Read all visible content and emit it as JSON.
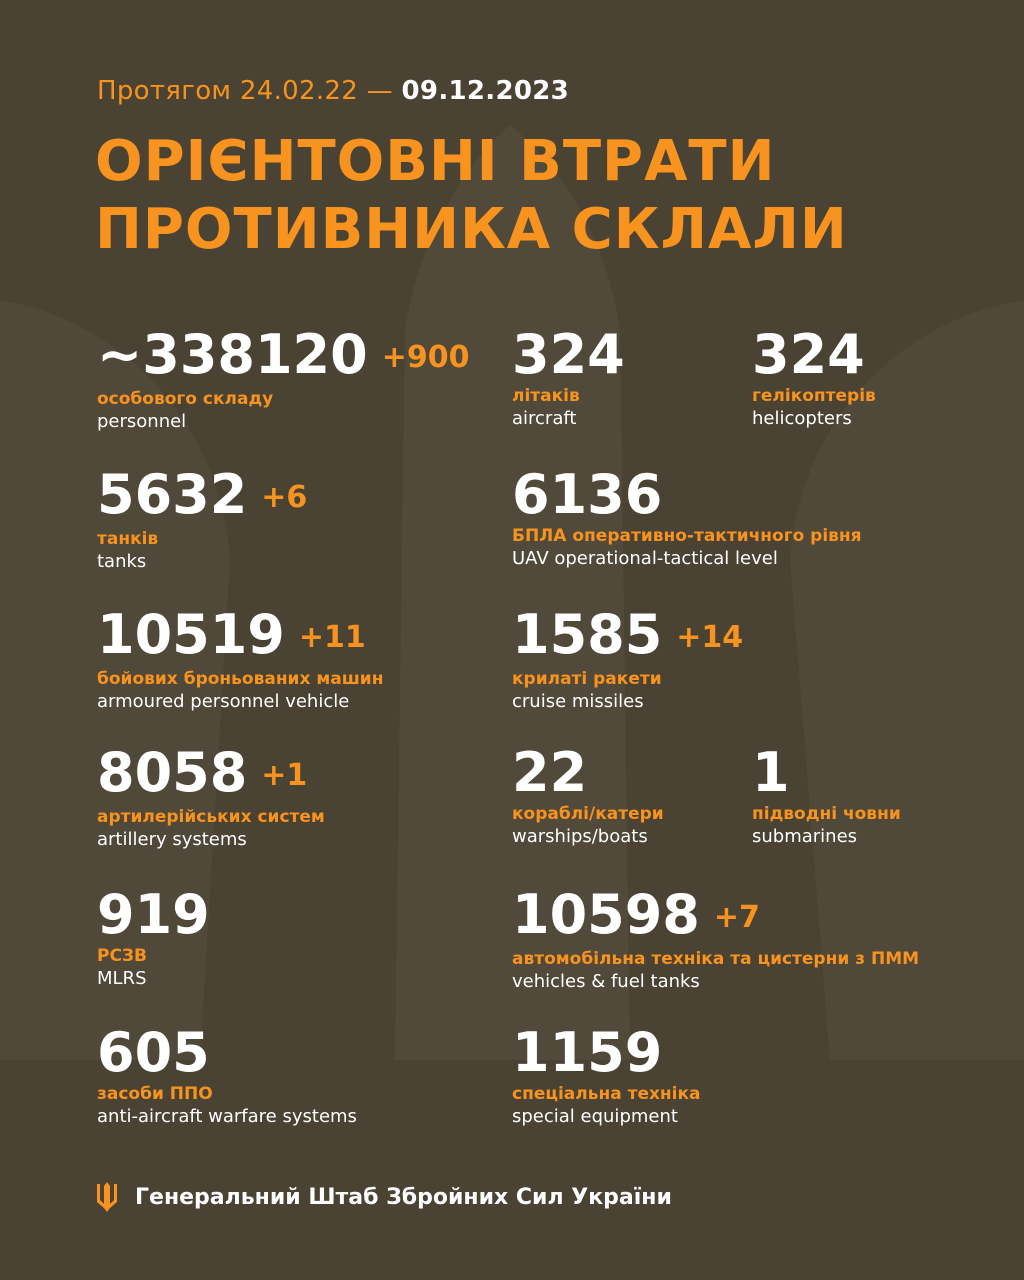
{
  "header": {
    "period_prefix": "Протягом 24.02.22 —",
    "period_end": "09.12.2023",
    "title_line1": "ОРІЄНТОВНІ ВТРАТИ",
    "title_line2": "ПРОТИВНИКА СКЛАЛИ"
  },
  "colors": {
    "background": "#4a4334",
    "accent": "#f7931e",
    "text": "#ffffff"
  },
  "stats": [
    {
      "value": "~338120",
      "delta": "+900",
      "ua": "особового складу",
      "en": "personnel"
    },
    {
      "value": "324",
      "delta": "",
      "ua": "літаків",
      "en": "aircraft"
    },
    {
      "value": "324",
      "delta": "",
      "ua": "гелікоптерів",
      "en": "helicopters"
    },
    {
      "value": "5632",
      "delta": "+6",
      "ua": "танків",
      "en": "tanks"
    },
    {
      "value": "6136",
      "delta": "",
      "ua": "БПЛА оперативно-тактичного рівня",
      "en": "UAV operational-tactical level"
    },
    {
      "value": "10519",
      "delta": "+11",
      "ua": "бойових броньованих машин",
      "en": "armoured personnel vehicle"
    },
    {
      "value": "1585",
      "delta": "+14",
      "ua": "крилаті ракети",
      "en": "cruise missiles"
    },
    {
      "value": "8058",
      "delta": "+1",
      "ua": "артилерійських систем",
      "en": "artillery systems"
    },
    {
      "value": "22",
      "delta": "",
      "ua": "кораблі/катери",
      "en": "warships/boats"
    },
    {
      "value": "1",
      "delta": "",
      "ua": "підводні човни",
      "en": "submarines"
    },
    {
      "value": "919",
      "delta": "",
      "ua": "РСЗВ",
      "en": "MLRS"
    },
    {
      "value": "10598",
      "delta": "+7",
      "ua": "автомобільна техніка та цистерни з ПММ",
      "en": "vehicles & fuel tanks"
    },
    {
      "value": "605",
      "delta": "",
      "ua": "засоби ППО",
      "en": "anti-aircraft warfare systems"
    },
    {
      "value": "1159",
      "delta": "",
      "ua": "спеціальна техніка",
      "en": "special equipment"
    }
  ],
  "footer": {
    "icon": "trident-icon",
    "text": "Генеральний Штаб Збройних Сил України"
  }
}
